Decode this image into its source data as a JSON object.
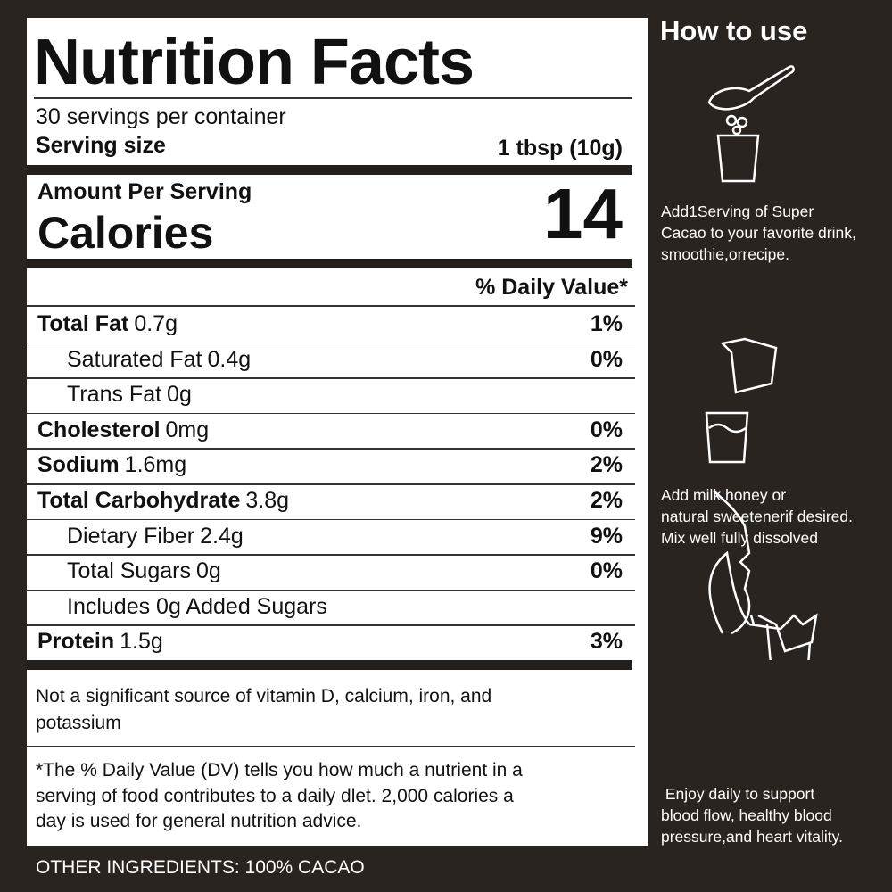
{
  "label": {
    "title": "Nutrition Facts",
    "servings": "30 servings per container",
    "serving_size": {
      "label": "Serving size",
      "value": "1 tbsp (10g)"
    },
    "amount_per_serving": "Amount Per Serving",
    "calories": {
      "label": "Calories",
      "value": 14
    },
    "daily_value_header": "% Daily Value*",
    "rows": [
      {
        "name": "Total Fat",
        "amount": "0.7g",
        "dv": "1%",
        "indent": false
      },
      {
        "name": "Saturated Fat",
        "amount": "0.4g",
        "dv": "0%",
        "indent": true
      },
      {
        "name": "Trans Fat",
        "amount": "0g",
        "indent": true
      },
      {
        "name": "Cholesterol",
        "amount": "0mg",
        "dv": "0%",
        "indent": false
      },
      {
        "name": "Sodium",
        "amount": "1.6mg",
        "dv": "2%",
        "indent": false
      },
      {
        "name": "Total Carbohydrate",
        "amount": "3.8g",
        "dv": "2%",
        "indent": false
      },
      {
        "name": "Dietary Fiber",
        "amount": "2.4g",
        "dv": "9%",
        "indent": true
      },
      {
        "name": "Total Sugars",
        "amount": "0g",
        "dv": "0%",
        "indent": true
      },
      {
        "name": "Includes 0g Added Sugars",
        "indent": true
      },
      {
        "name": "Protein",
        "amount": "1.5g",
        "dv": "3%",
        "indent": false
      }
    ],
    "note": [
      "Not a significant source of vitamin D, calcium, iron, and",
      "potassium"
    ],
    "footnote": [
      "*The % Daily Value (DV) tells you how much a nutrient in a",
      "serving of food contributes to a daily dlet. 2,000 calories a",
      "day is used for general nutrition advice."
    ]
  },
  "ingredients": "OTHER INGREDIENTS: 100% CACAO",
  "how_to_use": {
    "title": "How to use",
    "steps": [
      {
        "lines": [
          "Add1Serving of Super",
          "Cacao to your favorite drink,",
          "smoothie,orrecipe."
        ]
      },
      {
        "lines": [
          "Add milk honey or",
          "natural sweetenerif desired.",
          "Mix well fully dissolved"
        ]
      },
      {
        "lines": [
          " Enjoy daily to support",
          "blood flow, healthy blood",
          "pressure,and heart vitality."
        ]
      }
    ]
  }
}
